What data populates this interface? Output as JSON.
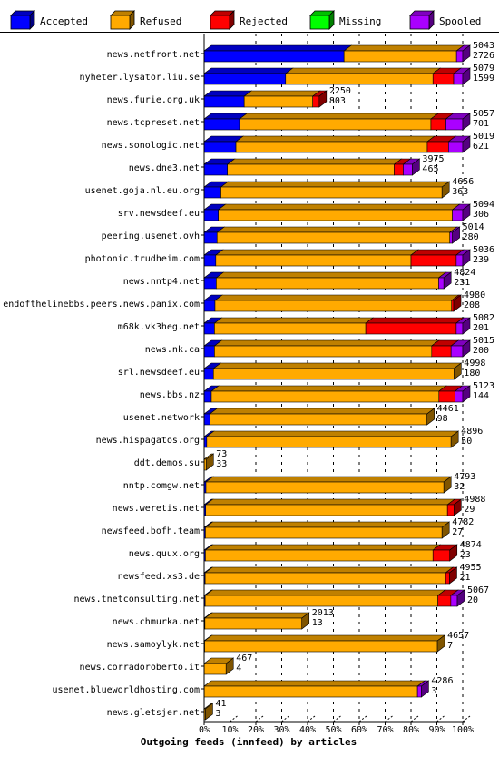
{
  "chart_data": {
    "type": "bar",
    "orientation": "horizontal",
    "stacked": true,
    "title": "",
    "xlabel": "Outgoing feeds (innfeed) by articles",
    "ylabel": "",
    "xlim": [
      0,
      100
    ],
    "x_ticks": [
      "0%",
      "10%",
      "20%",
      "30%",
      "40%",
      "50%",
      "60%",
      "70%",
      "80%",
      "90%",
      "100%"
    ],
    "legend_position": "top",
    "grid": "vertical dashed",
    "series": [
      {
        "name": "Accepted",
        "color": "#0000ff"
      },
      {
        "name": "Refused",
        "color": "#ffaa00"
      },
      {
        "name": "Rejected",
        "color": "#ff0000"
      },
      {
        "name": "Missing",
        "color": "#00ff00"
      },
      {
        "name": "Spooled",
        "color": "#aa00ff"
      }
    ],
    "rows": [
      {
        "name": "news.netfront.net",
        "total": "5043",
        "second": "2726",
        "segs": [
          {
            "s": 0,
            "v": 54.1
          },
          {
            "s": 1,
            "v": 43.5
          },
          {
            "s": 4,
            "v": 2.4
          }
        ]
      },
      {
        "name": "nyheter.lysator.liu.se",
        "total": "5079",
        "second": "1599",
        "segs": [
          {
            "s": 0,
            "v": 31.5
          },
          {
            "s": 1,
            "v": 57.0
          },
          {
            "s": 2,
            "v": 8.0
          },
          {
            "s": 4,
            "v": 3.5
          }
        ]
      },
      {
        "name": "news.furie.org.uk",
        "total": "2250",
        "second": "803",
        "segs": [
          {
            "s": 0,
            "v": 15.5
          },
          {
            "s": 1,
            "v": 26.5
          },
          {
            "s": 2,
            "v": 2.5
          }
        ]
      },
      {
        "name": "news.tcpreset.net",
        "total": "5057",
        "second": "701",
        "segs": [
          {
            "s": 0,
            "v": 13.7
          },
          {
            "s": 1,
            "v": 74.0
          },
          {
            "s": 2,
            "v": 5.8
          },
          {
            "s": 4,
            "v": 6.5
          }
        ]
      },
      {
        "name": "news.sonologic.net",
        "total": "5019",
        "second": "621",
        "segs": [
          {
            "s": 0,
            "v": 12.3
          },
          {
            "s": 1,
            "v": 74.0
          },
          {
            "s": 2,
            "v": 8.2
          },
          {
            "s": 4,
            "v": 5.5
          }
        ]
      },
      {
        "name": "news.dne3.net",
        "total": "3975",
        "second": "465",
        "segs": [
          {
            "s": 0,
            "v": 9.0
          },
          {
            "s": 1,
            "v": 64.5
          },
          {
            "s": 2,
            "v": 3.5
          },
          {
            "s": 4,
            "v": 3.5
          }
        ]
      },
      {
        "name": "usenet.goja.nl.eu.org",
        "total": "4656",
        "second": "363",
        "segs": [
          {
            "s": 0,
            "v": 6.5
          },
          {
            "s": 1,
            "v": 85.5
          }
        ]
      },
      {
        "name": "srv.newsdeef.eu",
        "total": "5094",
        "second": "306",
        "segs": [
          {
            "s": 0,
            "v": 5.5
          },
          {
            "s": 1,
            "v": 90.5
          },
          {
            "s": 4,
            "v": 4.0
          }
        ]
      },
      {
        "name": "peering.usenet.ovh",
        "total": "5014",
        "second": "280",
        "segs": [
          {
            "s": 0,
            "v": 5.0
          },
          {
            "s": 1,
            "v": 90.0
          },
          {
            "s": 4,
            "v": 1.0
          }
        ]
      },
      {
        "name": "photonic.trudheim.com",
        "total": "5036",
        "second": "239",
        "segs": [
          {
            "s": 0,
            "v": 4.5
          },
          {
            "s": 1,
            "v": 75.5
          },
          {
            "s": 2,
            "v": 17.5
          },
          {
            "s": 4,
            "v": 2.5
          }
        ]
      },
      {
        "name": "news.nntp4.net",
        "total": "4824",
        "second": "231",
        "segs": [
          {
            "s": 0,
            "v": 4.7
          },
          {
            "s": 1,
            "v": 86.0
          },
          {
            "s": 4,
            "v": 2.0
          }
        ]
      },
      {
        "name": "endofthelinebbs.peers.news.panix.com",
        "total": "4980",
        "second": "208",
        "segs": [
          {
            "s": 0,
            "v": 4.2
          },
          {
            "s": 1,
            "v": 91.5
          },
          {
            "s": 2,
            "v": 0.8
          }
        ]
      },
      {
        "name": "m68k.vk3heg.net",
        "total": "5082",
        "second": "201",
        "segs": [
          {
            "s": 0,
            "v": 4.0
          },
          {
            "s": 1,
            "v": 58.5
          },
          {
            "s": 2,
            "v": 35.0
          },
          {
            "s": 4,
            "v": 2.5
          }
        ]
      },
      {
        "name": "news.nk.ca",
        "total": "5015",
        "second": "200",
        "segs": [
          {
            "s": 0,
            "v": 4.0
          },
          {
            "s": 1,
            "v": 84.0
          },
          {
            "s": 2,
            "v": 7.5
          },
          {
            "s": 4,
            "v": 4.5
          }
        ]
      },
      {
        "name": "srl.newsdeef.eu",
        "total": "4998",
        "second": "180",
        "segs": [
          {
            "s": 0,
            "v": 3.6
          },
          {
            "s": 1,
            "v": 93.0
          }
        ]
      },
      {
        "name": "news.bbs.nz",
        "total": "5123",
        "second": "144",
        "segs": [
          {
            "s": 0,
            "v": 2.8
          },
          {
            "s": 1,
            "v": 88.0
          },
          {
            "s": 2,
            "v": 6.2
          },
          {
            "s": 4,
            "v": 3.0
          }
        ]
      },
      {
        "name": "usenet.network",
        "total": "4461",
        "second": "98",
        "segs": [
          {
            "s": 0,
            "v": 2.2
          },
          {
            "s": 1,
            "v": 84.0
          }
        ]
      },
      {
        "name": "news.hispagatos.org",
        "total": "4896",
        "second": "50",
        "segs": [
          {
            "s": 0,
            "v": 1.0
          },
          {
            "s": 1,
            "v": 94.5
          }
        ]
      },
      {
        "name": "ddt.demos.su",
        "total": "73",
        "second": "33",
        "segs": [
          {
            "s": 1,
            "v": 0.8
          }
        ]
      },
      {
        "name": "nntp.comgw.net",
        "total": "4793",
        "second": "32",
        "segs": [
          {
            "s": 0,
            "v": 0.7
          },
          {
            "s": 1,
            "v": 92.0
          }
        ]
      },
      {
        "name": "news.weretis.net",
        "total": "4988",
        "second": "29",
        "segs": [
          {
            "s": 0,
            "v": 0.6
          },
          {
            "s": 1,
            "v": 93.5
          },
          {
            "s": 2,
            "v": 2.5
          }
        ]
      },
      {
        "name": "newsfeed.bofh.team",
        "total": "4782",
        "second": "27",
        "segs": [
          {
            "s": 0,
            "v": 0.5
          },
          {
            "s": 1,
            "v": 91.5
          }
        ]
      },
      {
        "name": "news.quux.org",
        "total": "4874",
        "second": "23",
        "segs": [
          {
            "s": 0,
            "v": 0.5
          },
          {
            "s": 1,
            "v": 88.0
          },
          {
            "s": 2,
            "v": 6.5
          }
        ]
      },
      {
        "name": "newsfeed.xs3.de",
        "total": "4955",
        "second": "21",
        "segs": [
          {
            "s": 0,
            "v": 0.4
          },
          {
            "s": 1,
            "v": 93.0
          },
          {
            "s": 2,
            "v": 1.5
          }
        ]
      },
      {
        "name": "news.tnetconsulting.net",
        "total": "5067",
        "second": "20",
        "segs": [
          {
            "s": 0,
            "v": 0.4
          },
          {
            "s": 1,
            "v": 90.0
          },
          {
            "s": 2,
            "v": 5.0
          },
          {
            "s": 4,
            "v": 2.5
          }
        ]
      },
      {
        "name": "news.chmurka.net",
        "total": "2013",
        "second": "13",
        "segs": [
          {
            "s": 0,
            "v": 0.3
          },
          {
            "s": 1,
            "v": 37.5
          }
        ]
      },
      {
        "name": "news.samoylyk.net",
        "total": "4657",
        "second": "7",
        "segs": [
          {
            "s": 0,
            "v": 0.2
          },
          {
            "s": 1,
            "v": 90.0
          }
        ]
      },
      {
        "name": "news.corradoroberto.it",
        "total": "467",
        "second": "4",
        "segs": [
          {
            "s": 1,
            "v": 8.5
          }
        ]
      },
      {
        "name": "usenet.blueworldhosting.com",
        "total": "4286",
        "second": "3",
        "segs": [
          {
            "s": 1,
            "v": 82.5
          },
          {
            "s": 4,
            "v": 1.5
          }
        ]
      },
      {
        "name": "news.gletsjer.net",
        "total": "41",
        "second": "3",
        "segs": [
          {
            "s": 1,
            "v": 0.5
          }
        ]
      }
    ]
  }
}
